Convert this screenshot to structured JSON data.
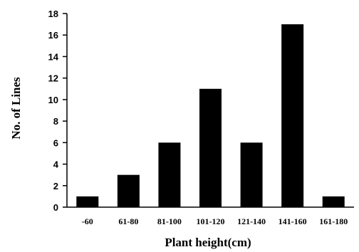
{
  "chart_data": {
    "type": "bar",
    "categories": [
      "-60",
      "61-80",
      "81-100",
      "101-120",
      "121-140",
      "141-160",
      "161-180"
    ],
    "values": [
      1,
      3,
      6,
      11,
      6,
      17,
      1
    ],
    "title": "",
    "xlabel": "Plant height(cm)",
    "ylabel": "No. of Lines",
    "ylim": [
      0,
      18
    ],
    "yticks": [
      "0",
      "2",
      "4",
      "6",
      "8",
      "10",
      "12",
      "14",
      "16",
      "18"
    ],
    "grid": false,
    "legend": "none",
    "bar_color": "#000000"
  }
}
